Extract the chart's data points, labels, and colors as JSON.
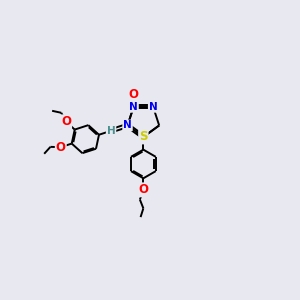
{
  "background_color": "#e8e8f0",
  "bond_color": "#000000",
  "atom_colors": {
    "O": "#ff0000",
    "N": "#0000ee",
    "S": "#cccc00",
    "C": "#000000",
    "H": "#4a9090"
  },
  "font_size": 7.5,
  "lw": 1.4
}
